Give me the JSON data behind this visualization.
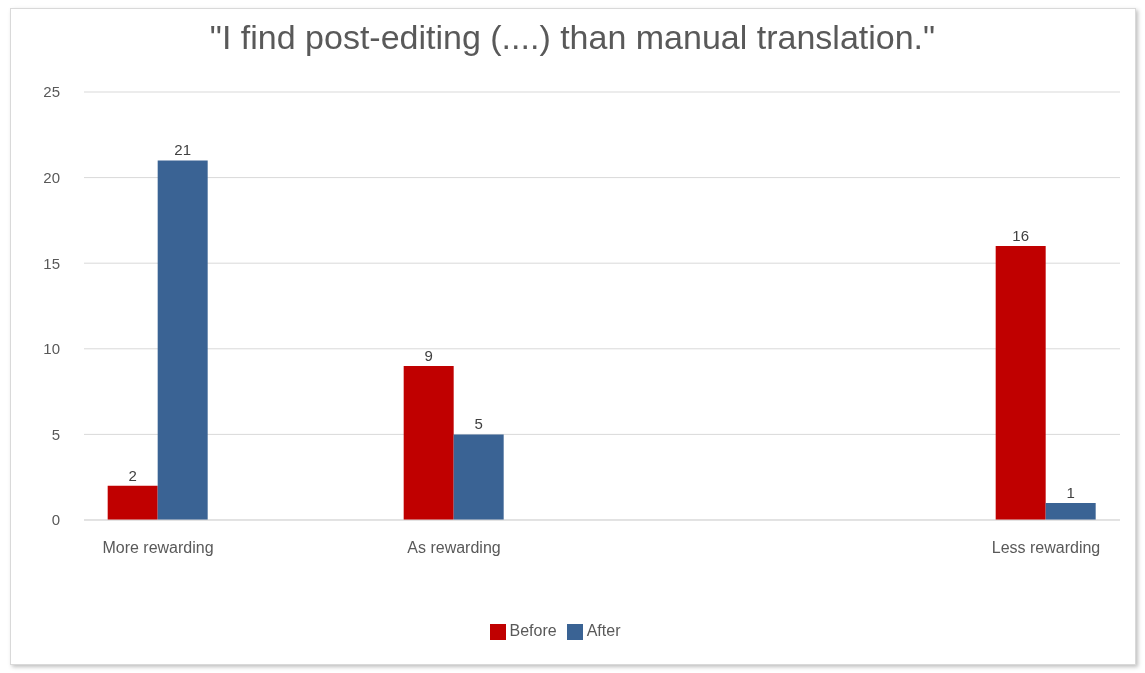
{
  "chart_data": {
    "type": "bar",
    "title": "\"I find post-editing (....) than manual translation.\"",
    "categories": [
      "More rewarding",
      null,
      "As rewarding",
      null,
      null,
      null,
      "Less rewarding"
    ],
    "series": [
      {
        "name": "Before",
        "color": "#c00000",
        "values": [
          2,
          null,
          9,
          null,
          null,
          null,
          16
        ]
      },
      {
        "name": "After",
        "color": "#3a6394",
        "values": [
          21,
          null,
          5,
          null,
          null,
          null,
          1
        ]
      }
    ],
    "ylim": [
      0,
      25
    ],
    "yticks": [
      0,
      5,
      10,
      15,
      20,
      25
    ],
    "grid": "y",
    "legend": "bottom",
    "data_labels": true
  }
}
